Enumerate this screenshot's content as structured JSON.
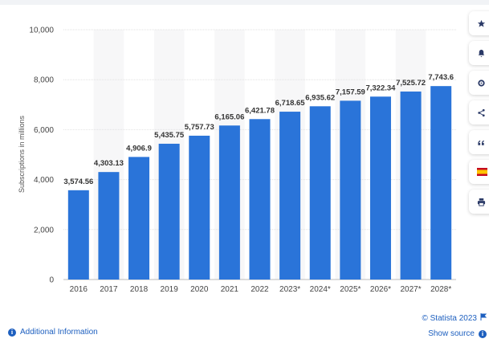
{
  "chart_data": {
    "type": "bar",
    "categories": [
      "2016",
      "2017",
      "2018",
      "2019",
      "2020",
      "2021",
      "2022",
      "2023*",
      "2024*",
      "2025*",
      "2026*",
      "2027*",
      "2028*"
    ],
    "values": [
      3574.56,
      4303.13,
      4906.9,
      5435.75,
      5757.73,
      6165.06,
      6421.78,
      6718.65,
      6935.62,
      7157.59,
      7322.34,
      7525.72,
      7743.6
    ],
    "value_labels": [
      "3,574.56",
      "4,303.13",
      "4,906.9",
      "5,435.75",
      "5,757.73",
      "6,165.06",
      "6,421.78",
      "6,718.65",
      "6,935.62",
      "7,157.59",
      "7,322.34",
      "7,525.72",
      "7,743.6"
    ],
    "ylabel": "Subscriptions in millions",
    "xlabel": "",
    "ylim": [
      0,
      10000
    ],
    "yticks": [
      0,
      2000,
      4000,
      6000,
      8000,
      10000
    ],
    "ytick_labels": [
      "0",
      "2,000",
      "4,000",
      "6,000",
      "8,000",
      "10,000"
    ],
    "grid": true,
    "bar_color": "#2a74d9"
  },
  "toolbar": {
    "icons": [
      "star-icon",
      "bell-icon",
      "gear-icon",
      "share-icon",
      "quote-icon",
      "flag-es-icon",
      "print-icon"
    ]
  },
  "footer": {
    "additional_info": "Additional Information",
    "copyright": "© Statista 2023",
    "show_source": "Show source"
  }
}
